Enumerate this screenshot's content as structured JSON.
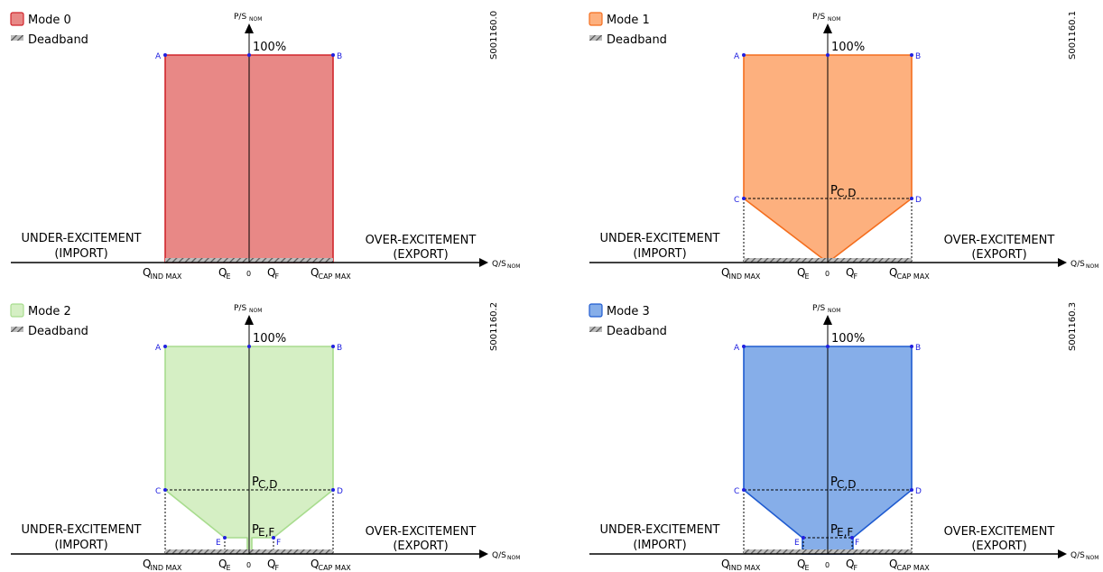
{
  "panels": [
    {
      "id": "mode-0",
      "legend": {
        "mode_label": "Mode 0",
        "deadband_label": "Deadband"
      },
      "fill": "#e88886",
      "stroke": "#d0262c",
      "code": "S001160.0",
      "shape": "rect",
      "dashed_cd": false,
      "show_ef_label": false,
      "show_ef_points": false
    },
    {
      "id": "mode-1",
      "legend": {
        "mode_label": "Mode 1",
        "deadband_label": "Deadband"
      },
      "fill": "#fdb07e",
      "stroke": "#f46e1e",
      "code": "S001160.1",
      "shape": "pointed",
      "dashed_cd": true,
      "show_ef_label": false,
      "show_ef_points": false
    },
    {
      "id": "mode-2",
      "legend": {
        "mode_label": "Mode 2",
        "deadband_label": "Deadband"
      },
      "fill": "#d5efc4",
      "stroke": "#a8dc8e",
      "code": "S001160.2",
      "shape": "notched",
      "dashed_cd": true,
      "show_ef_label": true,
      "show_ef_points": true
    },
    {
      "id": "mode-3",
      "legend": {
        "mode_label": "Mode 3",
        "deadband_label": "Deadband"
      },
      "fill": "#86aee9",
      "stroke": "#1f5bd0",
      "code": "S001160.3",
      "shape": "stepped",
      "dashed_cd": true,
      "show_ef_label": true,
      "show_ef_points": true
    }
  ],
  "labels": {
    "hundred": "100%",
    "under_line1": "UNDER-EXCITEMENT",
    "under_line2": "(IMPORT)",
    "over_line1": "OVER-EXCITEMENT",
    "over_line2": "(EXPORT)",
    "y_axis_main": "P/S",
    "y_axis_sub": "NOM",
    "x_axis_main": "Q/S",
    "x_axis_sub": "NOM",
    "q_ind_main": "Q",
    "q_ind_sub": "IND MAX",
    "q_cap_main": "Q",
    "q_cap_sub": "CAP MAX",
    "q_e_main": "Q",
    "q_e_sub": "E",
    "q_f_main": "Q",
    "q_f_sub": "F",
    "zero": "0",
    "p_cd_main": "P",
    "p_cd_sub": "C,D",
    "p_ef_main": "P",
    "p_ef_sub": "E,F",
    "point_a": "A",
    "point_b": "B",
    "point_c": "C",
    "point_d": "D",
    "point_e": "E",
    "point_f": "F"
  },
  "colors": {
    "point": "#2020e0",
    "deadband_dark": "#555555",
    "deadband_light": "#bbbbbb"
  }
}
